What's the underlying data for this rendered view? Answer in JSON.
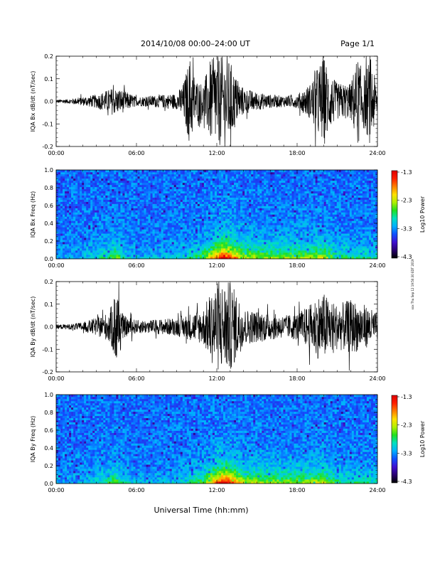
{
  "header": {
    "title": "2014/10/08   00:00–24:00 UT",
    "page": "Page 1/1"
  },
  "footer": {
    "xlabel": "Universal Time (hh:mm)",
    "side_note": "xxx Thu Sep 12 19:50:30 EDT 2019"
  },
  "colorbar": {
    "label": "Log10 Power",
    "ticks": [
      "-1.3",
      "-2.3",
      "-3.3",
      "-4.3"
    ],
    "stops": [
      "#000000",
      "#2a0070",
      "#4010d0",
      "#1050ff",
      "#00b0ff",
      "#00e0c0",
      "#20e020",
      "#b0f000",
      "#ffe000",
      "#ff8000",
      "#ff2000",
      "#e00000"
    ]
  },
  "chart_data": [
    {
      "type": "line",
      "name": "bx-waveform",
      "ylabel": "IQA Bx dB/dt (nT/sec)",
      "xlim": [
        0,
        24
      ],
      "ylim": [
        -0.2,
        0.2
      ],
      "yticks": [
        "0.2",
        "0.1",
        "0.0",
        "-0.1",
        "-0.2"
      ],
      "xticks": [
        "00:00",
        "06:00",
        "12:00",
        "18:00",
        "24:00"
      ],
      "envelope_x_hours": [
        0,
        1,
        2,
        3,
        3.8,
        4.2,
        5,
        6,
        7,
        8,
        9,
        9.5,
        10,
        10.4,
        11,
        11.5,
        12,
        12.5,
        13,
        13.5,
        14,
        15,
        16,
        17,
        18,
        19,
        19.5,
        20,
        20.5,
        21,
        22,
        22.5,
        23,
        23.5,
        24
      ],
      "envelope_amplitude": [
        0.008,
        0.01,
        0.02,
        0.03,
        0.05,
        0.06,
        0.05,
        0.02,
        0.025,
        0.03,
        0.035,
        0.08,
        0.2,
        0.1,
        0.08,
        0.18,
        0.2,
        0.2,
        0.18,
        0.1,
        0.06,
        0.04,
        0.03,
        0.025,
        0.03,
        0.08,
        0.15,
        0.2,
        0.12,
        0.08,
        0.08,
        0.2,
        0.12,
        0.2,
        0.05
      ]
    },
    {
      "type": "heatmap",
      "name": "bx-spectrogram",
      "ylabel": "IQA Bx Freq (Hz)",
      "xlim": [
        0,
        24
      ],
      "ylim": [
        0,
        1
      ],
      "yticks": [
        "1.0",
        "0.8",
        "0.6",
        "0.4",
        "0.2",
        "0.0"
      ],
      "xticks": [
        "00:00",
        "06:00",
        "12:00",
        "18:00",
        "24:00"
      ],
      "zlim": [
        -4.3,
        -1.3
      ]
    },
    {
      "type": "line",
      "name": "by-waveform",
      "ylabel": "IQA By dB/dt (nT/sec)",
      "xlim": [
        0,
        24
      ],
      "ylim": [
        -0.2,
        0.2
      ],
      "yticks": [
        "0.2",
        "0.1",
        "0.0",
        "-0.1",
        "-0.2"
      ],
      "xticks": [
        "00:00",
        "06:00",
        "12:00",
        "18:00",
        "24:00"
      ],
      "envelope_x_hours": [
        0,
        1,
        2,
        3,
        3.8,
        4.2,
        4.5,
        5,
        6,
        7,
        8,
        9,
        10,
        11,
        11.5,
        12,
        12.5,
        13,
        13.5,
        14,
        15,
        16,
        17,
        18,
        19,
        19.5,
        20,
        20.5,
        21,
        22,
        23,
        24
      ],
      "envelope_amplitude": [
        0.01,
        0.012,
        0.02,
        0.04,
        0.06,
        0.1,
        0.2,
        0.05,
        0.03,
        0.03,
        0.035,
        0.04,
        0.06,
        0.08,
        0.15,
        0.2,
        0.2,
        0.2,
        0.15,
        0.08,
        0.07,
        0.06,
        0.05,
        0.06,
        0.1,
        0.14,
        0.15,
        0.12,
        0.1,
        0.12,
        0.1,
        0.06
      ]
    },
    {
      "type": "heatmap",
      "name": "by-spectrogram",
      "ylabel": "IQA By Freq (Hz)",
      "xlim": [
        0,
        24
      ],
      "ylim": [
        0,
        1
      ],
      "yticks": [
        "1.0",
        "0.8",
        "0.6",
        "0.4",
        "0.2",
        "0.0"
      ],
      "xticks": [
        "00:00",
        "06:00",
        "12:00",
        "18:00",
        "24:00"
      ],
      "zlim": [
        -4.3,
        -1.3
      ]
    }
  ]
}
